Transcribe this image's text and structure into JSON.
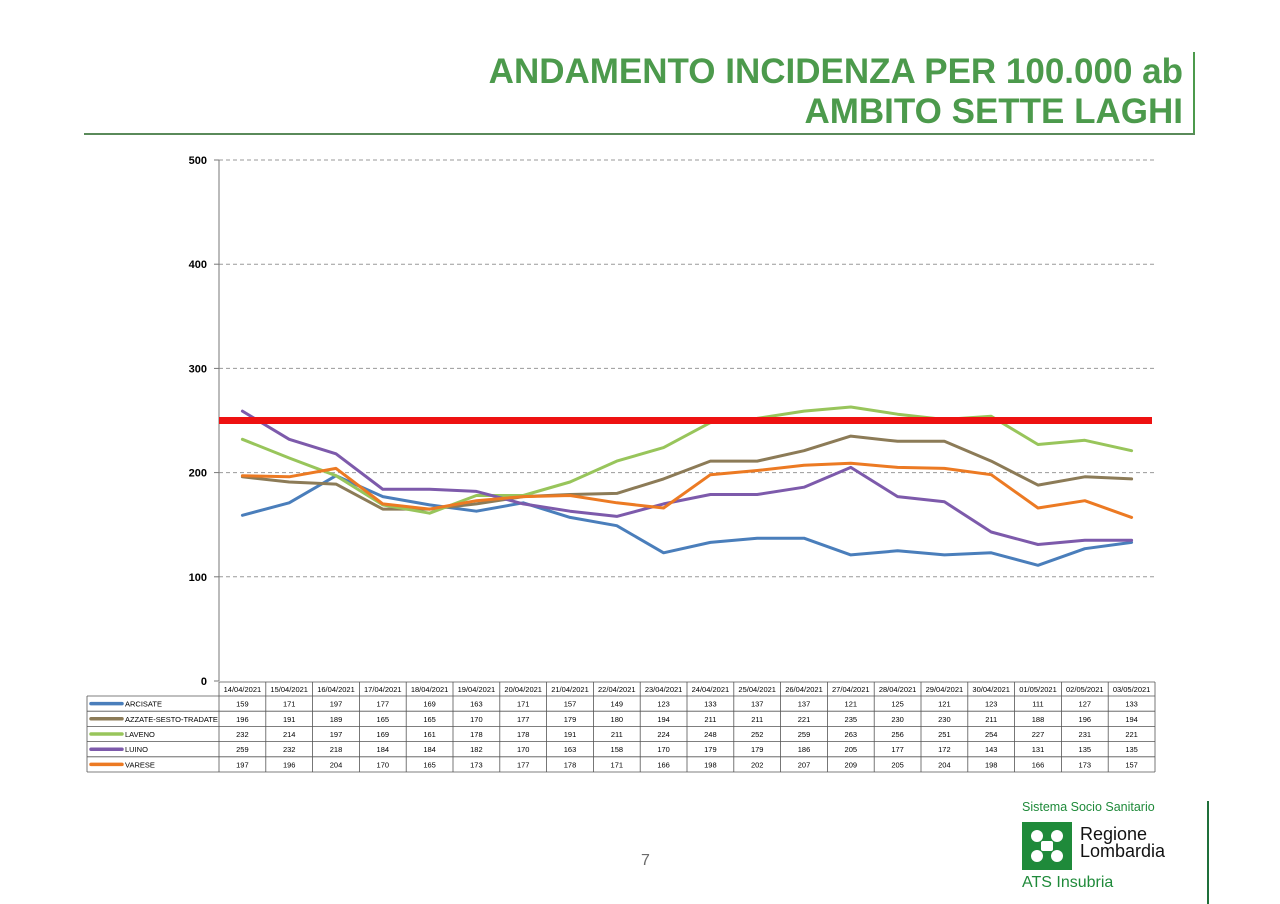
{
  "title": {
    "line1": "ANDAMENTO INCIDENZA PER 100.000 ab",
    "line2": "AMBITO SETTE LAGHI"
  },
  "chart_data": {
    "type": "line",
    "title": "ANDAMENTO INCIDENZA PER 100.000 ab AMBITO SETTE LAGHI",
    "xlabel": "",
    "ylabel": "",
    "ylim": [
      0,
      500
    ],
    "yticks": [
      0,
      100,
      200,
      300,
      400,
      500
    ],
    "grid": "horizontal dashed",
    "legend": "data table below chart",
    "threshold": {
      "value": 250,
      "color": "#ee1111"
    },
    "categories": [
      "14/04/2021",
      "15/04/2021",
      "16/04/2021",
      "17/04/2021",
      "18/04/2021",
      "19/04/2021",
      "20/04/2021",
      "21/04/2021",
      "22/04/2021",
      "23/04/2021",
      "24/04/2021",
      "25/04/2021",
      "26/04/2021",
      "27/04/2021",
      "28/04/2021",
      "29/04/2021",
      "30/04/2021",
      "01/05/2021",
      "02/05/2021",
      "03/05/2021"
    ],
    "series": [
      {
        "name": "ARCISATE",
        "color": "#4a7ebb",
        "values": [
          159,
          171,
          197,
          177,
          169,
          163,
          171,
          157,
          149,
          123,
          133,
          137,
          137,
          121,
          125,
          121,
          123,
          111,
          127,
          133
        ]
      },
      {
        "name": "AZZATE-SESTO-TRADATE",
        "color": "#8c7b57",
        "values": [
          196,
          191,
          189,
          165,
          165,
          170,
          177,
          179,
          180,
          194,
          211,
          211,
          221,
          235,
          230,
          230,
          211,
          188,
          196,
          194
        ]
      },
      {
        "name": "LAVENO",
        "color": "#98c55b",
        "values": [
          232,
          214,
          197,
          169,
          161,
          178,
          178,
          191,
          211,
          224,
          248,
          252,
          259,
          263,
          256,
          251,
          254,
          227,
          231,
          221
        ]
      },
      {
        "name": "LUINO",
        "color": "#7d5aab",
        "values": [
          259,
          232,
          218,
          184,
          184,
          182,
          170,
          163,
          158,
          170,
          179,
          179,
          186,
          205,
          177,
          172,
          143,
          131,
          135,
          135
        ]
      },
      {
        "name": "VARESE",
        "color": "#ec7a23",
        "values": [
          197,
          196,
          204,
          170,
          165,
          173,
          177,
          178,
          171,
          166,
          198,
          202,
          207,
          209,
          205,
          204,
          198,
          166,
          173,
          157
        ]
      }
    ]
  },
  "page_number": "7",
  "logo": {
    "system": "Sistema Socio Sanitario",
    "region_line1": "Regione",
    "region_line2": "Lombardia",
    "ats": "ATS Insubria",
    "mark_color": "#1f8a3a"
  }
}
